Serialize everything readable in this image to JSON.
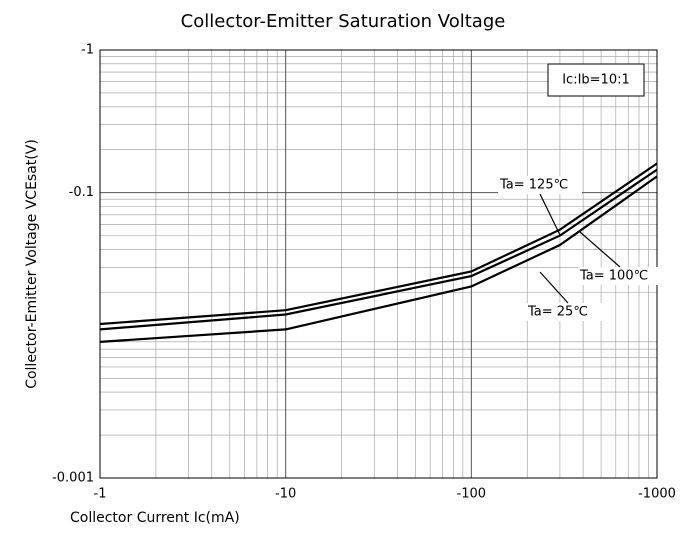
{
  "chart_data": {
    "type": "line",
    "title": "Collector-Emitter Saturation Voltage",
    "x_label": "Collector Current   Ic(mA)",
    "y_label": "Collector-Emitter Voltage   VCEsat(V)",
    "annotation": "Ic:Ib=10:1",
    "log_x": true,
    "log_y": true,
    "grid": true,
    "xlim": [
      -1,
      -1000
    ],
    "xticks": [
      -1,
      -10,
      -100,
      -1000
    ],
    "ylim": [
      -1,
      -0.001
    ],
    "yticks": [
      -1,
      -0.1,
      -0.001
    ],
    "x": [
      -1,
      -10,
      -100,
      -300,
      -1000
    ],
    "series": [
      {
        "name": "Ta= 125℃",
        "color": "#000000",
        "values": [
          -0.012,
          -0.015,
          -0.028,
          -0.055,
          -0.16
        ]
      },
      {
        "name": "Ta= 100℃",
        "color": "#000000",
        "values": [
          -0.011,
          -0.014,
          -0.026,
          -0.05,
          -0.145
        ]
      },
      {
        "name": "Ta= 25℃",
        "color": "#000000",
        "values": [
          -0.009,
          -0.011,
          -0.022,
          -0.043,
          -0.13
        ]
      }
    ]
  }
}
